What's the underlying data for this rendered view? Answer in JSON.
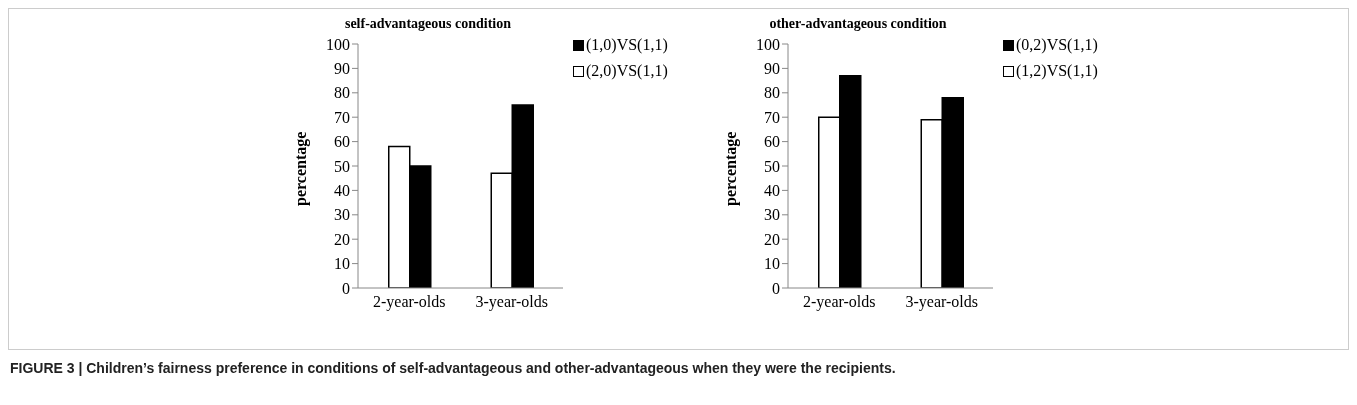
{
  "chart_data": [
    {
      "type": "bar",
      "title": "self-advantageous condition",
      "ylabel": "percentage",
      "categories": [
        "2-year-olds",
        "3-year-olds"
      ],
      "series": [
        {
          "name": "(2,0)VS(1,1)",
          "color": "#ffffff",
          "values": [
            58,
            47
          ]
        },
        {
          "name": "(1,0)VS(1,1)",
          "color": "#000000",
          "values": [
            50,
            75
          ]
        }
      ],
      "ylim": [
        0,
        100
      ],
      "yticks": [
        0,
        10,
        20,
        30,
        40,
        50,
        60,
        70,
        80,
        90,
        100
      ],
      "grid": false,
      "legend": "top right",
      "annotations": [
        "FIGURE 3 | Children’s fairness preference in conditions of self-advantageous and other-advantageous when they were the recipients."
      ]
    },
    {
      "type": "bar",
      "title": "other-advantageous condition",
      "ylabel": "percentage",
      "categories": [
        "2-year-olds",
        "3-year-olds"
      ],
      "series": [
        {
          "name": "(1,2)VS(1,1)",
          "color": "#ffffff",
          "values": [
            70,
            69
          ]
        },
        {
          "name": "(0,2)VS(1,1)",
          "color": "#000000",
          "values": [
            87,
            78
          ]
        }
      ],
      "ylim": [
        0,
        100
      ],
      "yticks": [
        0,
        10,
        20,
        30,
        40,
        50,
        60,
        70,
        80,
        90,
        100
      ],
      "grid": false,
      "legend": "top right"
    }
  ]
}
